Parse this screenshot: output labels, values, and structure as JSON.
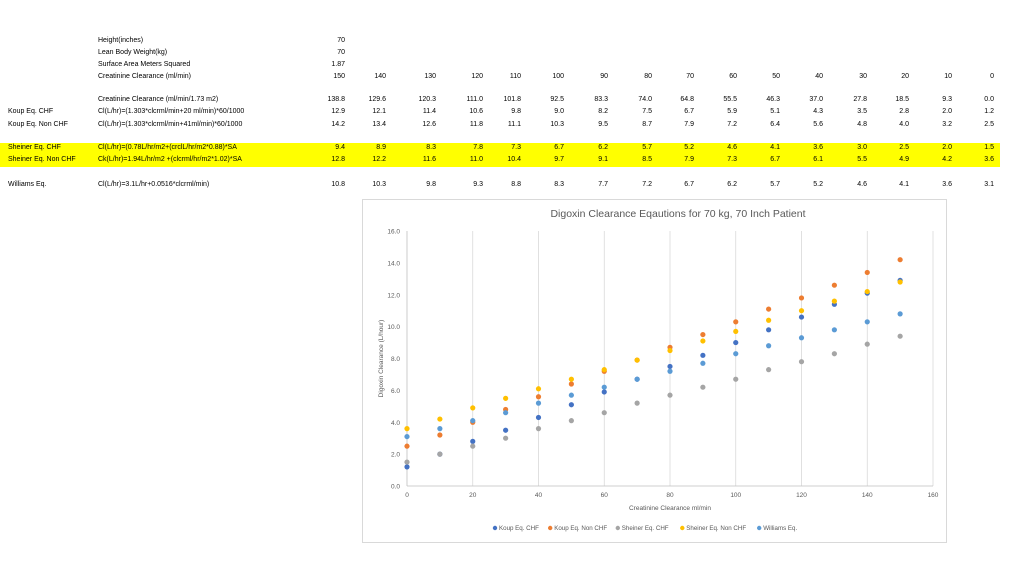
{
  "params": [
    {
      "label": "Height(inches)",
      "value": "70"
    },
    {
      "label": "Lean Body Weight(kg)",
      "value": "70"
    },
    {
      "label": "Surface Area Meters Squared",
      "value": "1.87"
    }
  ],
  "crcl_row": {
    "label": "Creatinine Clearance (ml/min)",
    "values": [
      "150",
      "140",
      "130",
      "120",
      "110",
      "100",
      "90",
      "80",
      "70",
      "60",
      "50",
      "40",
      "30",
      "20",
      "10",
      "0"
    ]
  },
  "crcl_norm_row": {
    "label": "Creatinine Clearance (ml/min/1.73 m2)",
    "values": [
      "138.8",
      "129.6",
      "120.3",
      "111.0",
      "101.8",
      "92.5",
      "83.3",
      "74.0",
      "64.8",
      "55.5",
      "46.3",
      "37.0",
      "27.8",
      "18.5",
      "9.3",
      "0.0"
    ]
  },
  "rows": [
    {
      "name": "Koup Eq. CHF",
      "formula": "Cl(L/hr)=(1.303*clcrml/min+20 ml/min)*60/1000",
      "values": [
        "12.9",
        "12.1",
        "11.4",
        "10.6",
        "9.8",
        "9.0",
        "8.2",
        "7.5",
        "6.7",
        "5.9",
        "5.1",
        "4.3",
        "3.5",
        "2.8",
        "2.0",
        "1.2"
      ],
      "highlight": false
    },
    {
      "name": "Koup Eq. Non CHF",
      "formula": "Cl(L/hr)=(1.303*clcrml/min+41ml/min)*60/1000",
      "values": [
        "14.2",
        "13.4",
        "12.6",
        "11.8",
        "11.1",
        "10.3",
        "9.5",
        "8.7",
        "7.9",
        "7.2",
        "6.4",
        "5.6",
        "4.8",
        "4.0",
        "3.2",
        "2.5"
      ],
      "highlight": false
    },
    {
      "name": "Sheiner Eq. CHF",
      "formula": "Cl(L/hr)=(0.78L/hr/m2+(crclL/hr/m2*0.88)*SA",
      "values": [
        "9.4",
        "8.9",
        "8.3",
        "7.8",
        "7.3",
        "6.7",
        "6.2",
        "5.7",
        "5.2",
        "4.6",
        "4.1",
        "3.6",
        "3.0",
        "2.5",
        "2.0",
        "1.5"
      ],
      "highlight": true
    },
    {
      "name": "Sheiner Eq. Non CHF",
      "formula": "Ck(L/hr)=1.94L/hr/m2 +(clcrml/hr/m2*1.02)*SA",
      "values": [
        "12.8",
        "12.2",
        "11.6",
        "11.0",
        "10.4",
        "9.7",
        "9.1",
        "8.5",
        "7.9",
        "7.3",
        "6.7",
        "6.1",
        "5.5",
        "4.9",
        "4.2",
        "3.6"
      ],
      "highlight": true
    },
    {
      "name": "Williams Eq.",
      "formula": "Cl(L/hr)=3.1L/hr+0.0516*clcrml/min)",
      "values": [
        "10.8",
        "10.3",
        "9.8",
        "9.3",
        "8.8",
        "8.3",
        "7.7",
        "7.2",
        "6.7",
        "6.2",
        "5.7",
        "5.2",
        "4.6",
        "4.1",
        "3.6",
        "3.1"
      ],
      "highlight": false
    }
  ],
  "chart_data": {
    "type": "scatter",
    "title": "Digoxin Clearance Eqautions for 70 kg, 70 Inch Patient",
    "xlabel": "Creatinine Clearance ml/min",
    "ylabel": "Digoxin Clearance (L/hour)",
    "xlim": [
      0,
      160
    ],
    "ylim": [
      0,
      16
    ],
    "xticks": [
      "0",
      "20",
      "40",
      "60",
      "80",
      "100",
      "120",
      "140",
      "160"
    ],
    "yticks": [
      "0.0",
      "2.0",
      "4.0",
      "6.0",
      "8.0",
      "10.0",
      "12.0",
      "14.0",
      "16.0"
    ],
    "grid": "vertical",
    "legend": "bottom",
    "x": [
      150,
      140,
      130,
      120,
      110,
      100,
      90,
      80,
      70,
      60,
      50,
      40,
      30,
      20,
      10,
      0
    ],
    "series": [
      {
        "name": "Koup Eq. CHF",
        "color": "#4472c4",
        "values": [
          12.9,
          12.1,
          11.4,
          10.6,
          9.8,
          9.0,
          8.2,
          7.5,
          6.7,
          5.9,
          5.1,
          4.3,
          3.5,
          2.8,
          2.0,
          1.2
        ]
      },
      {
        "name": "Koup Eq. Non CHF",
        "color": "#ed7d31",
        "values": [
          14.2,
          13.4,
          12.6,
          11.8,
          11.1,
          10.3,
          9.5,
          8.7,
          7.9,
          7.2,
          6.4,
          5.6,
          4.8,
          4.0,
          3.2,
          2.5
        ]
      },
      {
        "name": "Sheiner Eq. CHF",
        "color": "#a5a5a5",
        "values": [
          9.4,
          8.9,
          8.3,
          7.8,
          7.3,
          6.7,
          6.2,
          5.7,
          5.2,
          4.6,
          4.1,
          3.6,
          3.0,
          2.5,
          2.0,
          1.5
        ]
      },
      {
        "name": "Sheiner Eq. Non CHF",
        "color": "#ffc000",
        "values": [
          12.8,
          12.2,
          11.6,
          11.0,
          10.4,
          9.7,
          9.1,
          8.5,
          7.9,
          7.3,
          6.7,
          6.1,
          5.5,
          4.9,
          4.2,
          3.6
        ]
      },
      {
        "name": "Williams Eq.",
        "color": "#5b9bd5",
        "values": [
          10.8,
          10.3,
          9.8,
          9.3,
          8.8,
          8.3,
          7.7,
          7.2,
          6.7,
          6.2,
          5.7,
          5.2,
          4.6,
          4.1,
          3.6,
          3.1
        ]
      }
    ]
  }
}
